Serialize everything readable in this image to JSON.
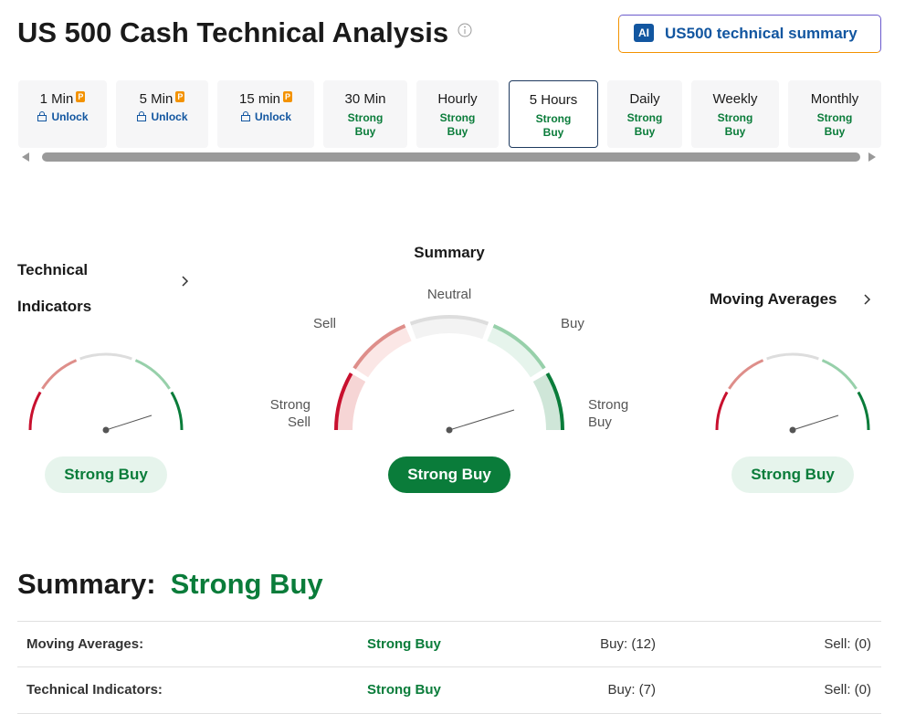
{
  "header": {
    "title": "US 500 Cash Technical Analysis",
    "ai_badge": "AI",
    "ai_button": "US500 technical summary"
  },
  "timeframes": [
    {
      "label": "1 Min",
      "status": "Unlock",
      "locked": true
    },
    {
      "label": "5 Min",
      "status": "Unlock",
      "locked": true
    },
    {
      "label": "15 min",
      "status": "Unlock",
      "locked": true
    },
    {
      "label": "30 Min",
      "status": "Strong Buy"
    },
    {
      "label": "Hourly",
      "status": "Strong Buy"
    },
    {
      "label": "5 Hours",
      "status": "Strong Buy",
      "selected": true
    },
    {
      "label": "Daily",
      "status": "Strong Buy"
    },
    {
      "label": "Weekly",
      "status": "Strong Buy"
    },
    {
      "label": "Monthly",
      "status": "Strong Buy"
    }
  ],
  "gauges": {
    "technical_indicators": {
      "title": "Technical Indicators",
      "result": "Strong Buy"
    },
    "summary": {
      "title": "Summary",
      "labels": {
        "neutral": "Neutral",
        "sell": "Sell",
        "buy": "Buy",
        "strong_sell": "Strong Sell",
        "strong_buy": "Strong Buy"
      },
      "result": "Strong Buy"
    },
    "moving_averages": {
      "title": "Moving Averages",
      "result": "Strong Buy"
    }
  },
  "summary": {
    "heading": "Summary:",
    "value": "Strong Buy"
  },
  "table": {
    "rows": [
      [
        "Moving Averages:",
        "Strong Buy",
        "Buy: (12)",
        "Sell: (0)"
      ],
      [
        "Technical Indicators:",
        "Strong Buy",
        "Buy: (7)",
        "Sell: (0)"
      ]
    ]
  }
}
